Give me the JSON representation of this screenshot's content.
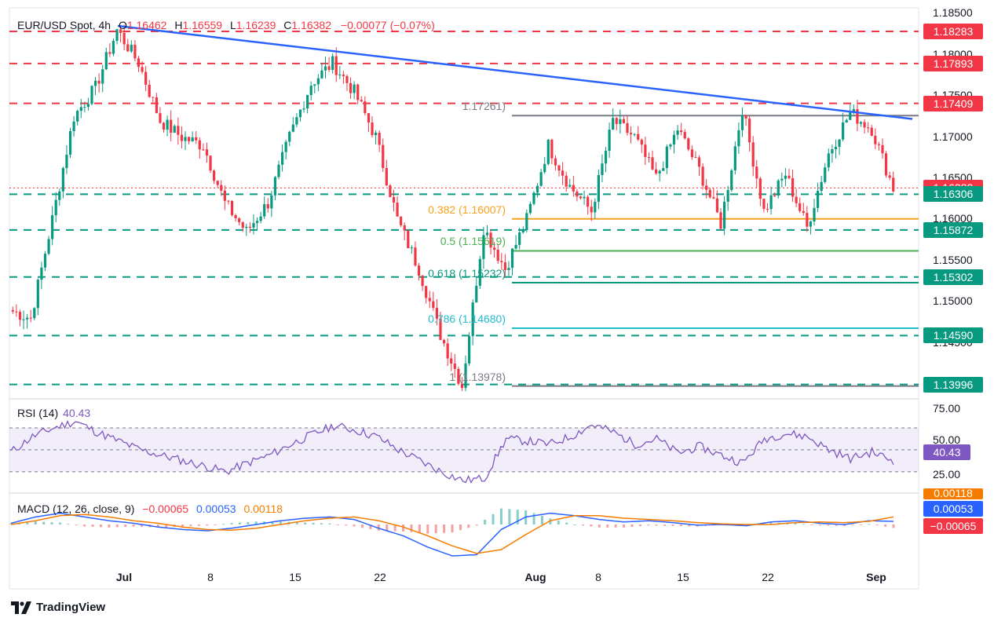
{
  "header": {
    "symbol": "EUR/USD Spot, 4h",
    "open_label": "O",
    "open": "1.16462",
    "high_label": "H",
    "high": "1.16559",
    "low_label": "L",
    "low": "1.16239",
    "close_label": "C",
    "close": "1.16382",
    "change": "−0.00077 (−0.07%)"
  },
  "price_axis": {
    "ticks": [
      "1.18500",
      "1.18000",
      "1.17500",
      "1.17000",
      "1.16500",
      "1.16000",
      "1.15500",
      "1.15000",
      "1.14500"
    ],
    "tick_values": [
      1.185,
      1.18,
      1.175,
      1.17,
      1.165,
      1.16,
      1.155,
      1.15,
      1.145
    ]
  },
  "level_tags": [
    {
      "text": "1.18283",
      "value": 1.18283,
      "color": "#f23645",
      "style": "red-dashed"
    },
    {
      "text": "1.17893",
      "value": 1.17893,
      "color": "#f23645",
      "style": "red-dashed"
    },
    {
      "text": "1.17409",
      "value": 1.17409,
      "color": "#f23645",
      "style": "red-dashed"
    },
    {
      "text": "1.16382",
      "value": 1.16382,
      "color": "#f23645",
      "style": "red-dotted"
    },
    {
      "text": "1.16306",
      "value": 1.16306,
      "color": "#089981",
      "style": "green-dashed"
    },
    {
      "text": "1.15872",
      "value": 1.15872,
      "color": "#089981",
      "style": "green-dashed"
    },
    {
      "text": "1.15302",
      "value": 1.15302,
      "color": "#089981",
      "style": "green-dashed"
    },
    {
      "text": "1.14590",
      "value": 1.1459,
      "color": "#089981",
      "style": "green-dashed"
    },
    {
      "text": "1.13996",
      "value": 1.13996,
      "color": "#089981",
      "style": "green-dashed"
    }
  ],
  "fibonacci": [
    {
      "text": "1.17261)",
      "value": 1.17261,
      "color": "#787b86"
    },
    {
      "text": "0.382 (1.16007)",
      "value": 1.16007,
      "color": "#f7a21b"
    },
    {
      "text": "0.5 (1.15619)",
      "value": 1.15619,
      "color": "#4caf50"
    },
    {
      "text": "0.618 (1.15232)",
      "value": 1.15232,
      "color": "#089981"
    },
    {
      "text": "0.786 (1.14680)",
      "value": 1.1468,
      "color": "#22bcd0"
    },
    {
      "text": "1 (1.13978)",
      "value": 1.13978,
      "color": "#787b86"
    }
  ],
  "x_axis": {
    "labels": [
      "Jul",
      "8",
      "15",
      "22",
      "Aug",
      "8",
      "15",
      "22",
      "Sep"
    ],
    "bold": [
      true,
      false,
      false,
      false,
      true,
      false,
      false,
      false,
      true
    ]
  },
  "rsi": {
    "title": "RSI (14)",
    "value": "40.43",
    "tag": "40.43",
    "ticks": [
      "75.00",
      "50.00",
      "25.00"
    ],
    "levels": [
      70,
      50,
      30
    ]
  },
  "macd": {
    "title": "MACD (12, 26, close, 9)",
    "hist": "−0.00065",
    "macd": "0.00053",
    "signal": "0.00118",
    "tags": [
      "0.00118",
      "0.00053",
      "−0.00065"
    ],
    "colors": {
      "hist": "#f23645",
      "macd": "#2962ff",
      "signal": "#f57c00"
    }
  },
  "footer": {
    "brand": "TradingView"
  },
  "chart_data": {
    "type": "candlestick",
    "symbol": "EUR/USD",
    "timeframe": "4h",
    "price_range": [
      1.1385,
      1.1855
    ],
    "trend_line": {
      "from": 1.1835,
      "to": 1.1722
    },
    "segments": [
      {
        "from": 1.149,
        "to": 1.148
      },
      {
        "from": 1.148,
        "to": 1.16
      },
      {
        "from": 1.16,
        "to": 1.1725
      },
      {
        "from": 1.1725,
        "to": 1.176
      },
      {
        "from": 1.176,
        "to": 1.183
      },
      {
        "from": 1.183,
        "to": 1.179
      },
      {
        "from": 1.179,
        "to": 1.172
      },
      {
        "from": 1.172,
        "to": 1.17
      },
      {
        "from": 1.17,
        "to": 1.169
      },
      {
        "from": 1.169,
        "to": 1.162
      },
      {
        "from": 1.162,
        "to": 1.1585
      },
      {
        "from": 1.1585,
        "to": 1.162
      },
      {
        "from": 1.162,
        "to": 1.17
      },
      {
        "from": 1.17,
        "to": 1.1765
      },
      {
        "from": 1.1765,
        "to": 1.179
      },
      {
        "from": 1.179,
        "to": 1.1755
      },
      {
        "from": 1.1755,
        "to": 1.17
      },
      {
        "from": 1.17,
        "to": 1.16
      },
      {
        "from": 1.16,
        "to": 1.154
      },
      {
        "from": 1.154,
        "to": 1.146
      },
      {
        "from": 1.146,
        "to": 1.1398
      },
      {
        "from": 1.1398,
        "to": 1.159
      },
      {
        "from": 1.159,
        "to": 1.154
      },
      {
        "from": 1.154,
        "to": 1.16
      },
      {
        "from": 1.16,
        "to": 1.169
      },
      {
        "from": 1.169,
        "to": 1.164
      },
      {
        "from": 1.164,
        "to": 1.161
      },
      {
        "from": 1.161,
        "to": 1.172
      },
      {
        "from": 1.172,
        "to": 1.17
      },
      {
        "from": 1.17,
        "to": 1.165
      },
      {
        "from": 1.165,
        "to": 1.171
      },
      {
        "from": 1.171,
        "to": 1.166
      },
      {
        "from": 1.166,
        "to": 1.1595
      },
      {
        "from": 1.1595,
        "to": 1.1735
      },
      {
        "from": 1.1735,
        "to": 1.161
      },
      {
        "from": 1.161,
        "to": 1.1655
      },
      {
        "from": 1.1655,
        "to": 1.159
      },
      {
        "from": 1.159,
        "to": 1.168
      },
      {
        "from": 1.168,
        "to": 1.173
      },
      {
        "from": 1.173,
        "to": 1.171
      },
      {
        "from": 1.171,
        "to": 1.1638
      }
    ],
    "rsi_path": [
      48,
      62,
      70,
      76,
      66,
      58,
      50,
      45,
      40,
      35,
      30,
      38,
      45,
      55,
      64,
      72,
      68,
      62,
      50,
      40,
      30,
      22,
      24,
      60,
      58,
      55,
      62,
      73,
      66,
      55,
      60,
      47,
      53,
      45,
      38,
      60,
      65,
      62,
      50,
      42,
      48,
      40
    ],
    "macd_path": [
      0.0002,
      0.0012,
      0.0018,
      0.0012,
      0.0006,
      0.0002,
      -0.0004,
      -0.0008,
      -0.001,
      -0.0006,
      0.0,
      0.0006,
      0.001,
      0.0012,
      0.0008,
      -0.0006,
      -0.0018,
      -0.0036,
      -0.005,
      -0.0048,
      -0.0008,
      0.0012,
      0.0018,
      0.0014,
      0.0008,
      0.0004,
      0.0006,
      0.0003,
      -0.0001,
      0.0,
      -0.0002,
      0.0004,
      0.0006,
      0.0002,
      0.0,
      0.0006,
      0.0005
    ],
    "signal_path": [
      0.0,
      0.0006,
      0.0014,
      0.0016,
      0.0012,
      0.0006,
      0.0002,
      -0.0004,
      -0.0008,
      -0.0009,
      -0.0006,
      0.0,
      0.0006,
      0.001,
      0.0012,
      0.0006,
      -0.0004,
      -0.0018,
      -0.0034,
      -0.0046,
      -0.004,
      -0.0016,
      0.0006,
      0.0014,
      0.0014,
      0.001,
      0.0008,
      0.0006,
      0.0003,
      0.0001,
      0.0,
      0.0,
      0.0003,
      0.0004,
      0.0003,
      0.0005,
      0.0012
    ]
  }
}
